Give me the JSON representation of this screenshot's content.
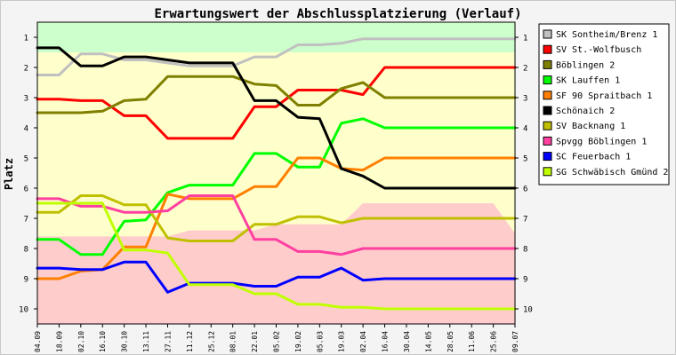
{
  "chart_data": {
    "type": "line",
    "title": "Erwartungswert der Abschlussplatzierung (Verlauf)",
    "ylabel": "Platz",
    "xlabel": "",
    "ylim": [
      0.5,
      10.5
    ],
    "y_reversed": true,
    "y_ticks": [
      1,
      2,
      3,
      4,
      5,
      6,
      7,
      8,
      9,
      10
    ],
    "x": [
      "04.09",
      "18.09",
      "02.10",
      "16.10",
      "30.10",
      "13.11",
      "27.11",
      "11.12",
      "25.12",
      "08.01",
      "22.01",
      "05.02",
      "19.02",
      "05.03",
      "19.03",
      "02.04",
      "16.04",
      "30.04",
      "14.05",
      "28.05",
      "11.06",
      "25.06",
      "09.07"
    ],
    "grid": false,
    "legend_position": "right",
    "zones": [
      {
        "name": "promotion",
        "color": "#ccffcc"
      },
      {
        "name": "midfield",
        "color": "#ffffcc"
      },
      {
        "name": "relegation",
        "color": "#ffcccc"
      }
    ],
    "zone_boundaries": {
      "promotion_lower": [
        1.5,
        1.5,
        1.5,
        1.5,
        1.5,
        1.5,
        1.5,
        1.5,
        1.5,
        1.5,
        1.5,
        1.5,
        1.5,
        1.5,
        1.5,
        1.5,
        1.5,
        1.5,
        1.5,
        1.5,
        1.5,
        1.5,
        1.5
      ],
      "relegation_upper": [
        7.6,
        7.6,
        7.6,
        7.6,
        7.6,
        7.6,
        7.6,
        7.4,
        7.4,
        7.4,
        7.4,
        7.2,
        7.2,
        7.2,
        7.2,
        6.5,
        6.5,
        6.5,
        6.5,
        6.5,
        6.5,
        6.5,
        7.5
      ]
    },
    "series": [
      {
        "name": "SK Sontheim/Brenz 1",
        "color": "#c0c0c0",
        "values": [
          2.25,
          2.25,
          1.55,
          1.55,
          1.75,
          1.75,
          1.85,
          1.95,
          1.95,
          1.95,
          1.65,
          1.65,
          1.25,
          1.25,
          1.2,
          1.05,
          1.05,
          1.05,
          1.05,
          1.05,
          1.05,
          1.05,
          1.05
        ]
      },
      {
        "name": "SV St.-Wolfbusch",
        "color": "#ff0000",
        "values": [
          3.05,
          3.05,
          3.1,
          3.1,
          3.6,
          3.6,
          4.35,
          4.35,
          4.35,
          4.35,
          3.3,
          3.3,
          2.75,
          2.75,
          2.75,
          2.9,
          2.0,
          2.0,
          2.0,
          2.0,
          2.0,
          2.0,
          2.0
        ]
      },
      {
        "name": "Böblingen 2",
        "color": "#808000",
        "values": [
          3.5,
          3.5,
          3.5,
          3.45,
          3.1,
          3.05,
          2.3,
          2.3,
          2.3,
          2.3,
          2.55,
          2.6,
          3.25,
          3.25,
          2.7,
          2.5,
          3.0,
          3.0,
          3.0,
          3.0,
          3.0,
          3.0,
          3.0
        ]
      },
      {
        "name": "SK Lauffen 1",
        "color": "#00ff00",
        "values": [
          7.7,
          7.7,
          8.2,
          8.2,
          7.1,
          7.05,
          6.15,
          5.9,
          5.9,
          5.9,
          4.85,
          4.85,
          5.3,
          5.3,
          3.85,
          3.7,
          4.0,
          4.0,
          4.0,
          4.0,
          4.0,
          4.0,
          4.0
        ]
      },
      {
        "name": "SF 90 Spraitbach 1",
        "color": "#ff8000",
        "values": [
          9.0,
          9.0,
          8.75,
          8.7,
          7.95,
          7.95,
          6.2,
          6.35,
          6.35,
          6.35,
          5.95,
          5.95,
          5.0,
          5.0,
          5.35,
          5.4,
          5.0,
          5.0,
          5.0,
          5.0,
          5.0,
          5.0,
          5.0
        ]
      },
      {
        "name": "Schönaich 2",
        "color": "#000000",
        "values": [
          1.35,
          1.35,
          1.95,
          1.95,
          1.65,
          1.65,
          1.75,
          1.85,
          1.85,
          1.85,
          3.1,
          3.1,
          3.65,
          3.7,
          5.35,
          5.6,
          6.0,
          6.0,
          6.0,
          6.0,
          6.0,
          6.0,
          6.0
        ]
      },
      {
        "name": "SV Backnang 1",
        "color": "#c0c000",
        "values": [
          6.8,
          6.8,
          6.25,
          6.25,
          6.55,
          6.55,
          7.65,
          7.75,
          7.75,
          7.75,
          7.2,
          7.2,
          6.95,
          6.95,
          7.15,
          7.0,
          7.0,
          7.0,
          7.0,
          7.0,
          7.0,
          7.0,
          7.0
        ]
      },
      {
        "name": "Spvgg Böblingen 1",
        "color": "#ff40a0",
        "values": [
          6.35,
          6.35,
          6.6,
          6.6,
          6.8,
          6.8,
          6.75,
          6.25,
          6.25,
          6.25,
          7.7,
          7.7,
          8.1,
          8.1,
          8.2,
          8.0,
          8.0,
          8.0,
          8.0,
          8.0,
          8.0,
          8.0,
          8.0
        ]
      },
      {
        "name": "SC Feuerbach 1",
        "color": "#0000ff",
        "values": [
          8.65,
          8.65,
          8.7,
          8.7,
          8.45,
          8.45,
          9.45,
          9.15,
          9.15,
          9.15,
          9.25,
          9.25,
          8.95,
          8.95,
          8.65,
          9.05,
          9.0,
          9.0,
          9.0,
          9.0,
          9.0,
          9.0,
          9.0
        ]
      },
      {
        "name": "SG Schwäbisch Gmünd 2",
        "color": "#c0ff00",
        "values": [
          6.5,
          6.5,
          6.5,
          6.5,
          8.05,
          8.05,
          8.15,
          9.2,
          9.2,
          9.2,
          9.5,
          9.5,
          9.85,
          9.85,
          9.95,
          9.95,
          10.0,
          10.0,
          10.0,
          10.0,
          10.0,
          10.0,
          10.0
        ]
      }
    ]
  }
}
